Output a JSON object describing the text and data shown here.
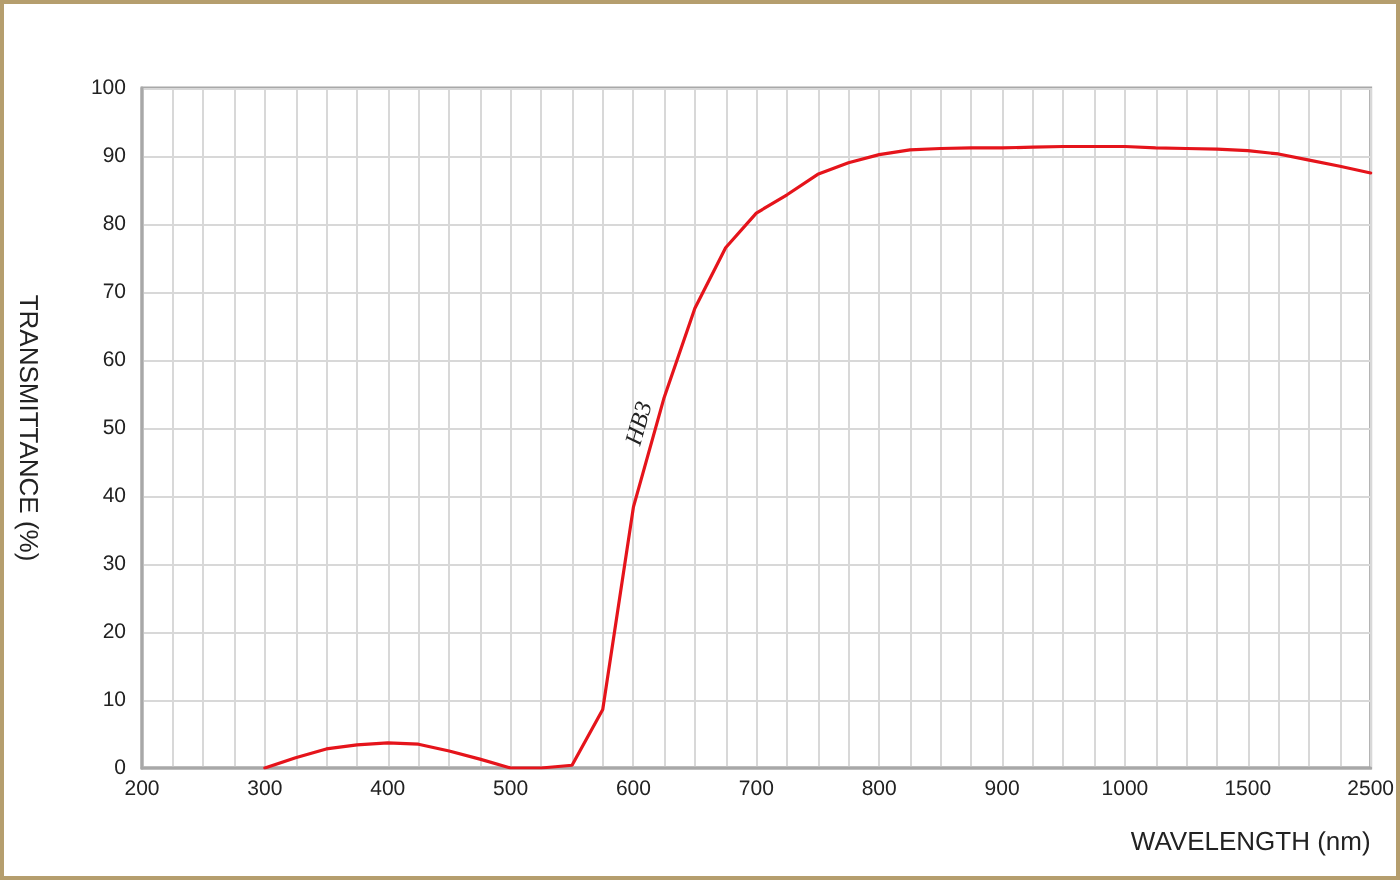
{
  "chart_data": {
    "type": "line",
    "xlabel": "WAVELENGTH (nm)",
    "ylabel": "TRANSMITTANCE (%)",
    "categories": [
      "200",
      null,
      null,
      null,
      "300",
      null,
      null,
      null,
      "400",
      null,
      null,
      null,
      "500",
      null,
      null,
      null,
      "600",
      null,
      null,
      null,
      "700",
      null,
      null,
      null,
      "800",
      null,
      null,
      null,
      "900",
      null,
      null,
      null,
      "1000",
      null,
      null,
      null,
      "1500",
      null,
      null,
      null,
      "2500"
    ],
    "series": [
      {
        "name": "HB3",
        "color": "#e5141b",
        "values": [
          null,
          null,
          null,
          null,
          0,
          1.5,
          2.8,
          3.4,
          3.7,
          3.5,
          2.5,
          1.3,
          0,
          0,
          0.4,
          8.6,
          38.4,
          54.5,
          67.6,
          76.5,
          81.6,
          84.3,
          87.3,
          89.0,
          90.2,
          90.9,
          91.1,
          91.2,
          91.2,
          91.3,
          91.4,
          91.4,
          91.4,
          91.2,
          91.1,
          91.0,
          90.8,
          90.3,
          89.4,
          88.5,
          87.5
        ]
      }
    ],
    "ylim": [
      0,
      100
    ],
    "yticks": [
      0,
      10,
      20,
      30,
      40,
      50,
      60,
      70,
      80,
      90,
      100
    ],
    "grid": true
  }
}
